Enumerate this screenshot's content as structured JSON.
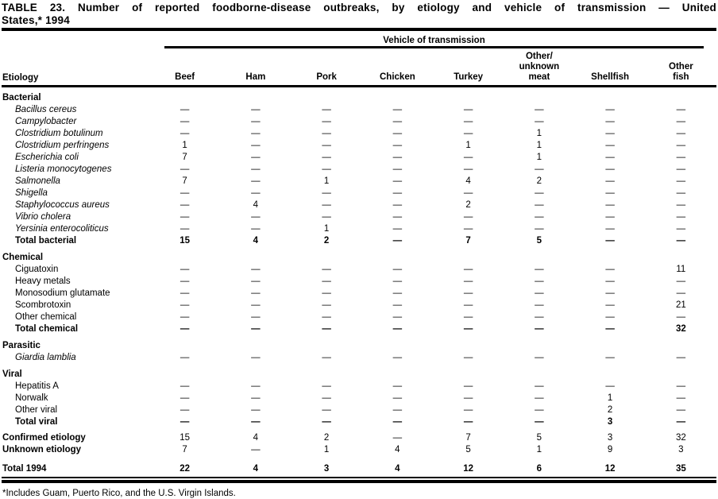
{
  "title": {
    "line1": "TABLE 23. Number of reported foodborne-disease outbreaks, by etiology and vehicle of transmission — United",
    "line2": "States,* 1994"
  },
  "table": {
    "spanner": "Vehicle of transmission",
    "row_header": "Etiology",
    "columns": [
      "Beef",
      "Ham",
      "Pork",
      "Chicken",
      "Turkey",
      "Other/\nunknown\nmeat",
      "Shellfish",
      "Other\nfish"
    ],
    "rows": [
      {
        "type": "group",
        "label": "Bacterial"
      },
      {
        "type": "species",
        "label": "Bacillus cereus",
        "values": [
          "—",
          "—",
          "—",
          "—",
          "—",
          "—",
          "—",
          "—"
        ]
      },
      {
        "type": "species",
        "label": "Campylobacter",
        "values": [
          "—",
          "—",
          "—",
          "—",
          "—",
          "—",
          "—",
          "—"
        ]
      },
      {
        "type": "species",
        "label": "Clostridium botulinum",
        "values": [
          "—",
          "—",
          "—",
          "—",
          "—",
          "1",
          "—",
          "—"
        ]
      },
      {
        "type": "species",
        "label": "Clostridium perfringens",
        "values": [
          "1",
          "—",
          "—",
          "—",
          "1",
          "1",
          "—",
          "—"
        ]
      },
      {
        "type": "species",
        "label": "Escherichia coli",
        "values": [
          "7",
          "—",
          "—",
          "—",
          "—",
          "1",
          "—",
          "—"
        ]
      },
      {
        "type": "species",
        "label": "Listeria monocytogenes",
        "values": [
          "—",
          "—",
          "—",
          "—",
          "—",
          "—",
          "—",
          "—"
        ]
      },
      {
        "type": "species",
        "label": "Salmonella",
        "values": [
          "7",
          "—",
          "1",
          "—",
          "4",
          "2",
          "—",
          "—"
        ]
      },
      {
        "type": "species",
        "label": "Shigella",
        "values": [
          "—",
          "—",
          "—",
          "—",
          "—",
          "—",
          "—",
          "—"
        ]
      },
      {
        "type": "species",
        "label": "Staphylococcus aureus",
        "values": [
          "—",
          "4",
          "—",
          "—",
          "2",
          "—",
          "—",
          "—"
        ]
      },
      {
        "type": "species",
        "label": "Vibrio cholera",
        "values": [
          "—",
          "—",
          "—",
          "—",
          "—",
          "—",
          "—",
          "—"
        ]
      },
      {
        "type": "species",
        "label": "Yersinia enterocoliticus",
        "values": [
          "—",
          "—",
          "1",
          "—",
          "—",
          "—",
          "—",
          "—"
        ]
      },
      {
        "type": "total",
        "label": "Total bacterial",
        "values": [
          "15",
          "4",
          "2",
          "—",
          "7",
          "5",
          "—",
          "—"
        ]
      },
      {
        "type": "group",
        "label": "Chemical"
      },
      {
        "type": "item",
        "label": "Ciguatoxin",
        "values": [
          "—",
          "—",
          "—",
          "—",
          "—",
          "—",
          "—",
          "11"
        ]
      },
      {
        "type": "item",
        "label": "Heavy metals",
        "values": [
          "—",
          "—",
          "—",
          "—",
          "—",
          "—",
          "—",
          "—"
        ]
      },
      {
        "type": "item",
        "label": "Monosodium glutamate",
        "values": [
          "—",
          "—",
          "—",
          "—",
          "—",
          "—",
          "—",
          "—"
        ]
      },
      {
        "type": "item",
        "label": "Scombrotoxin",
        "values": [
          "—",
          "—",
          "—",
          "—",
          "—",
          "—",
          "—",
          "21"
        ]
      },
      {
        "type": "item",
        "label": "Other chemical",
        "values": [
          "—",
          "—",
          "—",
          "—",
          "—",
          "—",
          "—",
          "—"
        ]
      },
      {
        "type": "total",
        "label": "Total chemical",
        "values": [
          "—",
          "—",
          "—",
          "—",
          "—",
          "—",
          "—",
          "32"
        ]
      },
      {
        "type": "group",
        "label": "Parasitic"
      },
      {
        "type": "species",
        "label": "Giardia lamblia",
        "values": [
          "—",
          "—",
          "—",
          "—",
          "—",
          "—",
          "—",
          "—"
        ]
      },
      {
        "type": "group",
        "label": "Viral"
      },
      {
        "type": "item",
        "label": "Hepatitis A",
        "values": [
          "—",
          "—",
          "—",
          "—",
          "—",
          "—",
          "—",
          "—"
        ]
      },
      {
        "type": "item",
        "label": "Norwalk",
        "values": [
          "—",
          "—",
          "—",
          "—",
          "—",
          "—",
          "1",
          "—"
        ]
      },
      {
        "type": "item",
        "label": "Other viral",
        "values": [
          "—",
          "—",
          "—",
          "—",
          "—",
          "—",
          "2",
          "—"
        ]
      },
      {
        "type": "total",
        "label": "Total viral",
        "values": [
          "—",
          "—",
          "—",
          "—",
          "—",
          "—",
          "3",
          "—"
        ]
      },
      {
        "type": "summary",
        "label": "Confirmed etiology",
        "values": [
          "15",
          "4",
          "2",
          "—",
          "7",
          "5",
          "3",
          "32"
        ]
      },
      {
        "type": "summary",
        "label": "Unknown etiology",
        "values": [
          "7",
          "—",
          "1",
          "4",
          "5",
          "1",
          "9",
          "3"
        ]
      },
      {
        "type": "grand",
        "label": "Total 1994",
        "values": [
          "22",
          "4",
          "3",
          "4",
          "12",
          "6",
          "12",
          "35"
        ]
      }
    ]
  },
  "footnote": "*Includes Guam, Puerto Rico, and the U.S. Virgin Islands."
}
